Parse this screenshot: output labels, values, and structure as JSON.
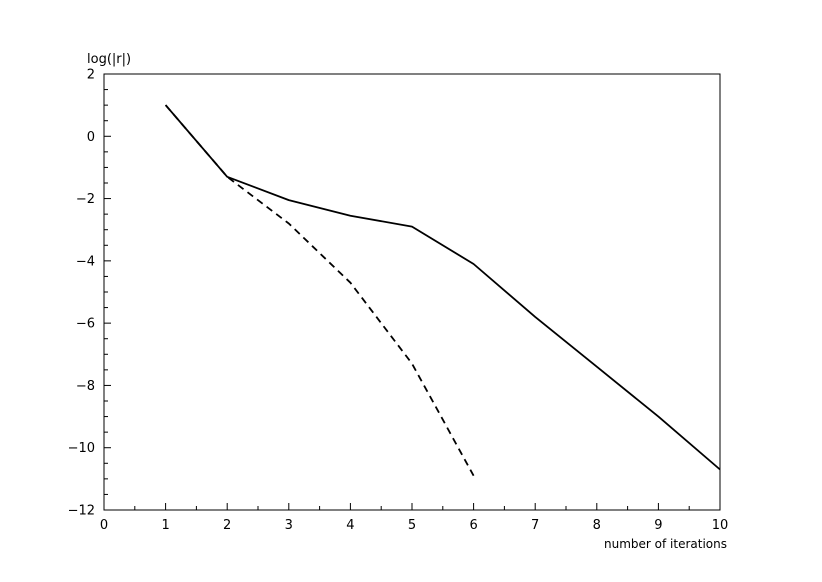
{
  "chart_data": {
    "type": "line",
    "title": "",
    "xlabel": "number of iterations",
    "ylabel": "log(|r|)",
    "xlim": [
      0,
      10
    ],
    "ylim": [
      -12,
      2
    ],
    "xticks": [
      "0",
      "1",
      "2",
      "3",
      "4",
      "5",
      "6",
      "7",
      "8",
      "9",
      "10"
    ],
    "yticks": [
      "2",
      "0",
      "−2",
      "−4",
      "−6",
      "−8",
      "−10",
      "−12"
    ],
    "grid": false,
    "series": [
      {
        "style": "solid",
        "color": "#000000",
        "x": [
          1,
          2,
          3,
          4,
          5,
          6,
          7,
          8,
          9,
          10
        ],
        "y": [
          1.0,
          -1.3,
          -2.05,
          -2.55,
          -2.9,
          -4.1,
          -5.8,
          -7.4,
          -9.0,
          -10.7
        ]
      },
      {
        "style": "dashed",
        "color": "#000000",
        "x": [
          1,
          2,
          3,
          4,
          5,
          6
        ],
        "y": [
          1.0,
          -1.3,
          -2.8,
          -4.7,
          -7.3,
          -10.9
        ]
      }
    ]
  }
}
